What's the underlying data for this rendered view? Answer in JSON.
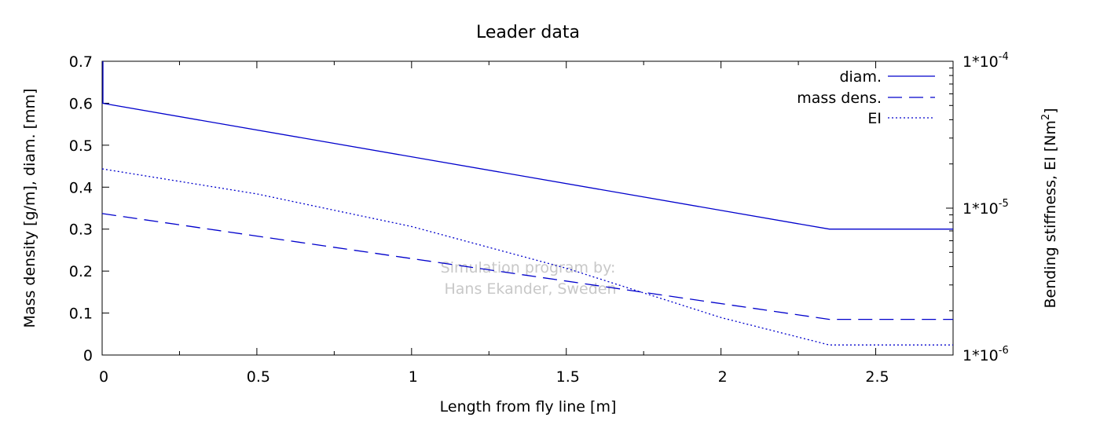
{
  "chart_data": {
    "type": "line",
    "title": "Leader data",
    "xlabel": "Length from fly line [m]",
    "ylabel": "Mass density [g/m], diam. [mm]",
    "y2label": "Bending stiffness, EI [Nm",
    "y2label_sup": "2",
    "y2label_end": "]",
    "xlim": [
      0,
      2.75
    ],
    "ylim": [
      0,
      0.7
    ],
    "y2lim": [
      1e-06,
      0.0001
    ],
    "y2scale": "log",
    "xticks": [
      "0",
      "0.5",
      "1",
      "1.5",
      "2",
      "2.5"
    ],
    "yticks": [
      "0",
      "0.1",
      "0.2",
      "0.3",
      "0.4",
      "0.5",
      "0.6",
      "0.7"
    ],
    "y2ticks": [
      {
        "base": "1*10",
        "exp": "-6"
      },
      {
        "base": "1*10",
        "exp": "-5"
      },
      {
        "base": "1*10",
        "exp": "-4"
      }
    ],
    "grid": false,
    "legend_position": "top-right",
    "line_color": "#0000cc",
    "series": [
      {
        "name": "diam.",
        "axis": "left",
        "style": "solid",
        "x": [
          0,
          2.35,
          2.75
        ],
        "y": [
          0.6,
          0.3,
          0.3
        ]
      },
      {
        "name": "mass dens.",
        "axis": "left",
        "style": "dashed",
        "x": [
          0,
          2.35,
          2.75
        ],
        "y": [
          0.337,
          0.085,
          0.085
        ]
      },
      {
        "name": "EI",
        "axis": "right",
        "style": "dotted",
        "x": [
          0,
          0.5,
          1.0,
          1.5,
          2.0,
          2.35,
          2.75
        ],
        "y": [
          1.85e-05,
          1.25e-05,
          7.5e-06,
          3.9e-06,
          1.8e-06,
          1.17e-06,
          1.17e-06
        ]
      }
    ],
    "watermark": [
      "Simulation program by:",
      "Hans Ekander, Sweden"
    ]
  }
}
